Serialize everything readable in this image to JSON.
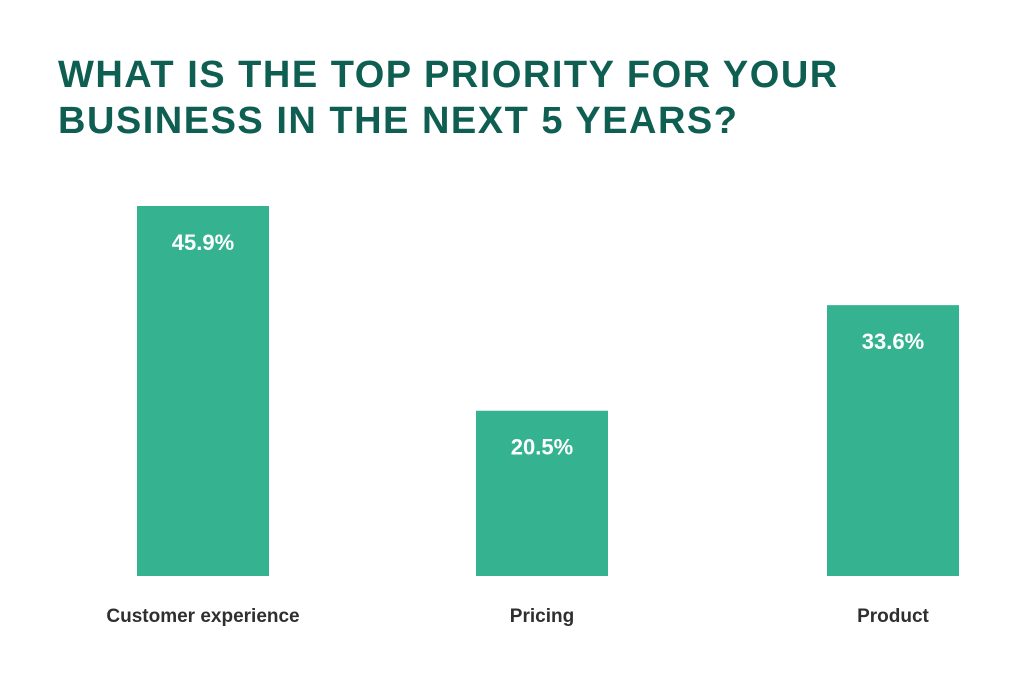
{
  "chart_data": {
    "type": "bar",
    "title": "WHAT IS THE TOP PRIORITY FOR YOUR BUSINESS IN THE NEXT 5 YEARS?",
    "categories": [
      "Customer experience",
      "Pricing",
      "Product"
    ],
    "values": [
      45.9,
      20.5,
      33.6
    ],
    "value_labels": [
      "45.9%",
      "20.5%",
      "33.6%"
    ],
    "unit": "%",
    "ylim": [
      0,
      45.9
    ],
    "grid": false,
    "legend": "none",
    "bar_color": "#35b28f",
    "title_color": "#0f5e52",
    "label_color": "#2f2f2f"
  }
}
